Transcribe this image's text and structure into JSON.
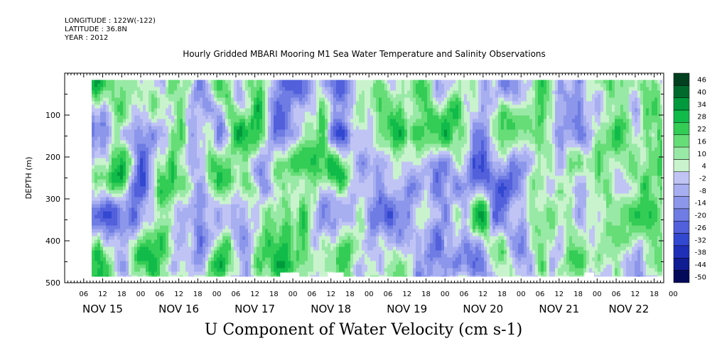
{
  "header": {
    "longitude": "LONGITUDE : 122W(-122)",
    "latitude": "LATITUDE : 36.8N",
    "year": "YEAR : 2012"
  },
  "chart_data": {
    "type": "heatmap",
    "title": "Hourly Gridded MBARI Mooring M1 Sea Water Temperature and Salinity Observations",
    "xlabel": "U Component of Water Velocity (cm s-1)",
    "ylabel": "DEPTH (m)",
    "ylim": [
      0,
      500
    ],
    "y_ticks": [
      100,
      200,
      300,
      400,
      500
    ],
    "y_tick_labels": [
      "100",
      "200",
      "300",
      "400",
      "500"
    ],
    "x_hour_ticks": [
      "06",
      "12",
      "18",
      "00",
      "06",
      "12",
      "18",
      "00",
      "06",
      "12",
      "18",
      "00",
      "06",
      "12",
      "18",
      "00",
      "06",
      "12",
      "18",
      "00",
      "06",
      "12",
      "18",
      "00",
      "06",
      "12",
      "18",
      "00",
      "06",
      "12",
      "18",
      "00"
    ],
    "x_day_labels": [
      "NOV 15",
      "NOV 16",
      "NOV 17",
      "NOV 18",
      "NOV 19",
      "NOV 20",
      "NOV 21",
      "NOV 22"
    ],
    "data_depth_range": [
      16,
      486
    ],
    "colorbar": {
      "levels": [
        "46",
        "40",
        "34",
        "28",
        "22",
        "16",
        "10",
        "4",
        "-2",
        "-8",
        "-14",
        "-20",
        "-26",
        "-32",
        "-38",
        "-44",
        "-50"
      ],
      "colors": [
        "#00401f",
        "#006a2c",
        "#009a3c",
        "#11bb4a",
        "#33cc55",
        "#66dd77",
        "#99e9a6",
        "#c9f3cc",
        "#c0c4f5",
        "#a8aff0",
        "#8c96ea",
        "#6e7ce3",
        "#5260dc",
        "#3348d0",
        "#1f2fb8",
        "#101c92",
        "#040a5a"
      ]
    },
    "missing_segments_at_500m": [
      {
        "start": "NOV 17 20",
        "end": "NOV 18 02"
      },
      {
        "start": "NOV 18 11",
        "end": "NOV 18 16"
      },
      {
        "start": "NOV 21 20",
        "end": "NOV 21 23"
      }
    ],
    "legend": "right colorbar",
    "grid": false
  }
}
